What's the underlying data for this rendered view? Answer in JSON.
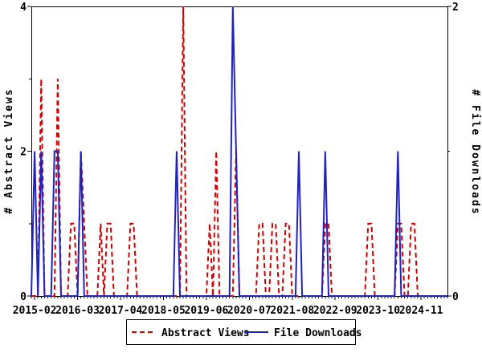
{
  "chart_data": {
    "type": "line",
    "title": "",
    "x_start": "2015-01",
    "x_end": "2025-07",
    "x_unit": "month",
    "grid": false,
    "legend_position": "bottom-center",
    "x_tick_labels": [
      "2015-02",
      "2016-03",
      "2017-04",
      "2018-05",
      "2019-06",
      "2020-07",
      "2021-08",
      "2022-09",
      "2023-10",
      "2024-11"
    ],
    "x_tick_month_indices": [
      1,
      14,
      27,
      40,
      53,
      66,
      79,
      92,
      105,
      118
    ],
    "y_left": {
      "label": "# Abstract Views",
      "min": 0,
      "max": 4,
      "labeled_ticks": [
        0,
        2,
        4
      ],
      "minor_ticks": [
        1,
        3
      ]
    },
    "y_right": {
      "label": "# File Downloads",
      "min": 0,
      "max": 2,
      "labeled_ticks": [
        0,
        2
      ],
      "minor_ticks": [
        1
      ]
    },
    "series": [
      {
        "name": "Abstract Views",
        "axis": "left",
        "color": "#cc0000",
        "line_style": "dashed",
        "values": [
          0,
          0,
          0,
          3,
          0,
          0,
          0,
          0,
          3,
          0,
          0,
          0,
          1,
          1,
          0,
          2,
          1,
          0,
          0,
          0,
          0,
          1,
          0,
          1,
          1,
          0,
          0,
          0,
          0,
          0,
          1,
          1,
          0,
          0,
          0,
          0,
          0,
          0,
          0,
          0,
          0,
          0,
          0,
          0,
          0,
          0,
          4,
          0,
          0,
          0,
          0,
          0,
          0,
          0,
          1,
          0,
          2,
          0,
          0,
          0,
          0,
          0,
          2,
          0,
          0,
          0,
          0,
          0,
          0,
          1,
          1,
          0,
          0,
          1,
          1,
          0,
          0,
          1,
          1,
          0,
          0,
          0,
          0,
          0,
          0,
          0,
          0,
          0,
          0,
          1,
          1,
          0,
          0,
          0,
          0,
          0,
          0,
          0,
          0,
          0,
          0,
          0,
          1,
          1,
          0,
          0,
          0,
          0,
          0,
          0,
          0,
          1,
          1,
          0,
          0,
          1,
          1,
          0,
          0,
          0,
          0,
          0,
          0,
          0,
          0,
          0,
          0
        ]
      },
      {
        "name": "File Downloads",
        "axis": "right",
        "color": "#2121bd",
        "line_style": "solid",
        "values": [
          0,
          1,
          0,
          1,
          0,
          0,
          0,
          1,
          1,
          0,
          0,
          0,
          0,
          0,
          0,
          1,
          0,
          0,
          0,
          0,
          0,
          0,
          0,
          0,
          0,
          0,
          0,
          0,
          0,
          0,
          0,
          0,
          0,
          0,
          0,
          0,
          0,
          0,
          0,
          0,
          0,
          0,
          0,
          0,
          1,
          0,
          0,
          0,
          0,
          0,
          0,
          0,
          0,
          0,
          0,
          0,
          0,
          0,
          0,
          0,
          0,
          2,
          1,
          0,
          0,
          0,
          0,
          0,
          0,
          0,
          0,
          0,
          0,
          0,
          0,
          0,
          0,
          0,
          0,
          0,
          0,
          1,
          0,
          0,
          0,
          0,
          0,
          0,
          0,
          1,
          0,
          0,
          0,
          0,
          0,
          0,
          0,
          0,
          0,
          0,
          0,
          0,
          0,
          0,
          0,
          0,
          0,
          0,
          0,
          0,
          0,
          1,
          0,
          0,
          0,
          0,
          0,
          0,
          0,
          0,
          0,
          0,
          0,
          0,
          0,
          0,
          0
        ]
      }
    ]
  },
  "legend": {
    "items": [
      {
        "label": "Abstract Views",
        "style": "dashed"
      },
      {
        "label": "File Downloads",
        "style": "solid"
      }
    ]
  },
  "colors": {
    "axis": "#000000",
    "background": "#ffffff"
  }
}
